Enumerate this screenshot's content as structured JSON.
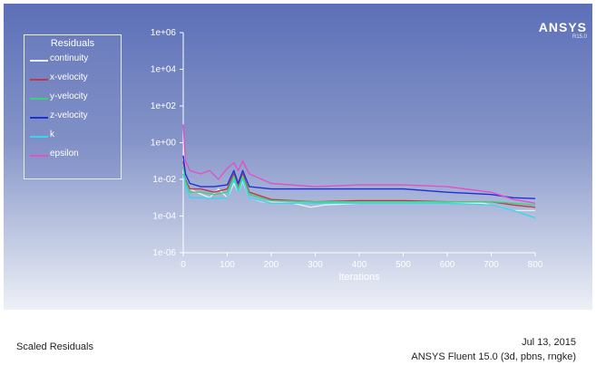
{
  "brand": {
    "name": "ANSYS",
    "version": "R15.0"
  },
  "footer": {
    "plot_name": "Scaled Residuals",
    "date": "Jul 13, 2015",
    "solver_info": "ANSYS Fluent 15.0 (3d, pbns, rngke)"
  },
  "colors": {
    "panel_top": "#5c6fb8",
    "panel_bottom": "#eef0f7",
    "axis": "#ffffff"
  },
  "chart_data": {
    "type": "line",
    "title": "",
    "xlabel": "Iterations",
    "ylabel": "",
    "y_scale": "log",
    "xlim": [
      0,
      800
    ],
    "ylim": [
      1e-06,
      1000000.0
    ],
    "x_ticks": [
      0,
      100,
      200,
      300,
      400,
      500,
      600,
      700,
      800
    ],
    "x_tick_labels": [
      "0",
      "100",
      "200",
      "300",
      "400",
      "500",
      "600",
      "700",
      "800"
    ],
    "y_ticks": [
      1e-06,
      0.0001,
      0.01,
      1,
      100.0,
      10000.0,
      1000000.0
    ],
    "y_tick_labels": [
      "1e-06",
      "1e-04",
      "1e-02",
      "1e+00",
      "1e+02",
      "1e+04",
      "1e+06"
    ],
    "legend_title": "Residuals",
    "legend_position": "top-left",
    "series": [
      {
        "name": "continuity",
        "color": "#e8ecf2",
        "x": [
          0,
          5,
          15,
          30,
          60,
          80,
          100,
          115,
          125,
          135,
          150,
          180,
          250,
          290,
          320,
          400,
          500,
          600,
          680,
          700,
          750,
          800
        ],
        "y": [
          1,
          0.01,
          0.003,
          0.002,
          0.001,
          0.003,
          0.001,
          0.006,
          0.002,
          0.008,
          0.001,
          0.0006,
          0.0005,
          0.0003,
          0.0004,
          0.0005,
          0.0005,
          0.0005,
          0.0005,
          0.0004,
          0.0002,
          0.0002
        ]
      },
      {
        "name": "x-velocity",
        "color": "#c0384c",
        "x": [
          0,
          5,
          15,
          40,
          70,
          100,
          115,
          125,
          135,
          150,
          200,
          300,
          400,
          500,
          600,
          700,
          750,
          800
        ],
        "y": [
          0.1,
          0.01,
          0.003,
          0.003,
          0.002,
          0.003,
          0.02,
          0.004,
          0.02,
          0.002,
          0.0008,
          0.0006,
          0.0007,
          0.0007,
          0.0006,
          0.0006,
          0.0004,
          0.0003
        ]
      },
      {
        "name": "y-velocity",
        "color": "#3fd07a",
        "x": [
          0,
          5,
          15,
          40,
          70,
          100,
          115,
          125,
          135,
          150,
          200,
          300,
          400,
          500,
          600,
          700,
          750,
          800
        ],
        "y": [
          0.05,
          0.008,
          0.002,
          0.002,
          0.0015,
          0.002,
          0.015,
          0.003,
          0.015,
          0.0015,
          0.0007,
          0.0006,
          0.0006,
          0.0006,
          0.0006,
          0.0006,
          0.0005,
          0.0004
        ]
      },
      {
        "name": "z-velocity",
        "color": "#1f2fd8",
        "x": [
          0,
          5,
          15,
          40,
          70,
          100,
          115,
          125,
          135,
          150,
          200,
          300,
          400,
          500,
          600,
          700,
          750,
          800
        ],
        "y": [
          0.2,
          0.02,
          0.006,
          0.004,
          0.004,
          0.005,
          0.03,
          0.006,
          0.03,
          0.004,
          0.003,
          0.003,
          0.003,
          0.003,
          0.002,
          0.0015,
          0.001,
          0.0009
        ]
      },
      {
        "name": "k",
        "color": "#37d8e8",
        "x": [
          0,
          5,
          15,
          40,
          70,
          100,
          115,
          125,
          135,
          150,
          200,
          300,
          400,
          500,
          600,
          700,
          750,
          800
        ],
        "y": [
          0.02,
          0.005,
          0.001,
          0.001,
          0.0009,
          0.001,
          0.01,
          0.002,
          0.01,
          0.001,
          0.0005,
          0.0005,
          0.0005,
          0.0005,
          0.0005,
          0.0004,
          0.0002,
          8e-05
        ]
      },
      {
        "name": "epsilon",
        "color": "#e052c8",
        "x": [
          0,
          5,
          15,
          40,
          60,
          80,
          100,
          115,
          125,
          135,
          150,
          200,
          300,
          400,
          500,
          600,
          700,
          750,
          800
        ],
        "y": [
          10,
          0.1,
          0.03,
          0.02,
          0.03,
          0.01,
          0.04,
          0.08,
          0.03,
          0.1,
          0.02,
          0.006,
          0.004,
          0.005,
          0.005,
          0.004,
          0.002,
          0.0008,
          0.0005
        ]
      }
    ]
  }
}
